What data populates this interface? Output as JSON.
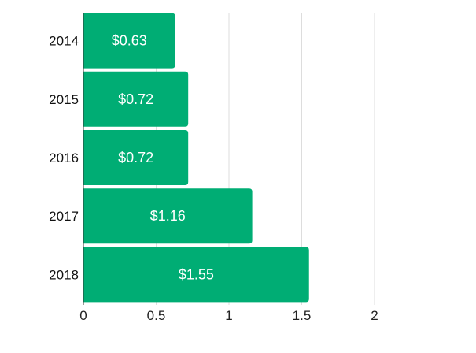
{
  "chart_data": {
    "type": "bar",
    "orientation": "horizontal",
    "categories": [
      "2014",
      "2015",
      "2016",
      "2017",
      "2018"
    ],
    "values": [
      0.63,
      0.72,
      0.72,
      1.16,
      1.55
    ],
    "data_labels": [
      "$0.63",
      "$0.72",
      "$0.72",
      "$1.16",
      "$1.55"
    ],
    "title": "",
    "xlabel": "",
    "ylabel": "",
    "xlim": [
      0,
      2
    ],
    "x_ticks": [
      "0",
      "0.5",
      "1",
      "1.5",
      "2"
    ],
    "grid": true,
    "legend": "none",
    "bar_color": "#00ad74",
    "label_color": "#ffffff",
    "grid_color": "#dddddd"
  }
}
